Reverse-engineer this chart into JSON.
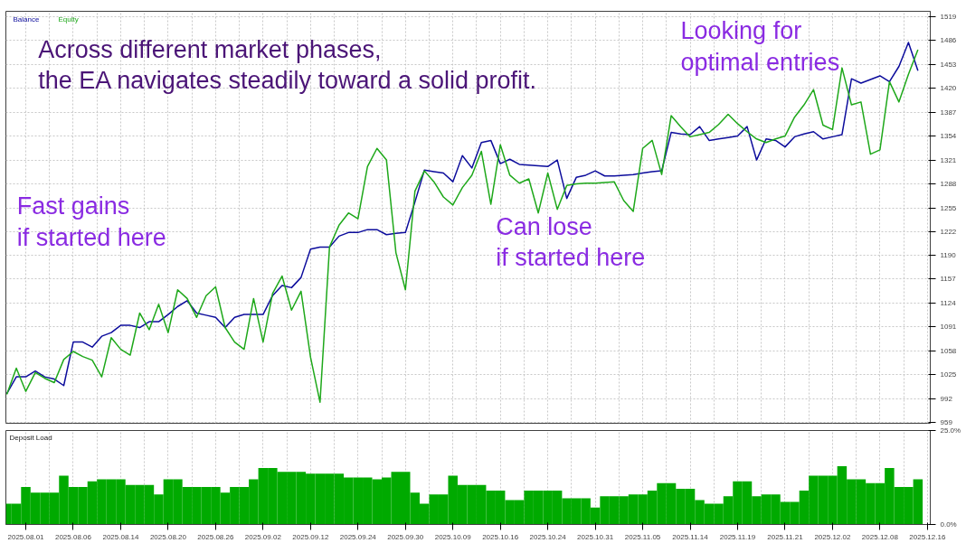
{
  "chart_data": [
    {
      "type": "line",
      "legend": "top left",
      "grid": true,
      "tick_labels": "y",
      "ylim": [
        958,
        1526
      ],
      "categories": [
        null,
        null,
        "2025.08.01",
        null,
        null,
        null,
        null,
        "2025.08.06",
        null,
        null,
        null,
        null,
        "2025.08.14",
        null,
        null,
        null,
        null,
        "2025.08.20",
        null,
        null,
        null,
        null,
        "2025.08.26",
        null,
        null,
        null,
        null,
        "2025.09.02",
        null,
        null,
        null,
        null,
        "2025.09.12",
        null,
        null,
        null,
        null,
        "2025.09.24",
        null,
        null,
        null,
        null,
        "2025.09.30",
        null,
        null,
        null,
        null,
        "2025.10.09",
        null,
        null,
        null,
        null,
        "2025.10.16",
        null,
        null,
        null,
        null,
        "2025.10.24",
        null,
        null,
        null,
        null,
        "2025.10.31",
        null,
        null,
        null,
        null,
        "2025.11.05",
        null,
        null,
        null,
        null,
        "2025.11.14",
        null,
        null,
        null,
        null,
        "2025.11.19",
        null,
        null,
        null,
        null,
        "2025.11.21",
        null,
        null,
        null,
        null,
        "2025.12.02",
        null,
        null,
        null,
        null,
        "2025.12.08",
        null,
        null,
        null,
        null,
        "2025.12.16"
      ],
      "yticks": [
        959,
        992,
        1025,
        1058,
        1091,
        1124,
        1157,
        1190,
        1222,
        1255,
        1288,
        1321,
        1354,
        1387,
        1420,
        1453,
        1486,
        1519
      ],
      "annotations": [
        "Across different market phases,\nthe EA navigates steadily toward a solid profit.",
        "Fast gains\nif started here",
        "Can lose\nif started here",
        "Looking for\noptimal entries"
      ],
      "series": [
        {
          "name": "Balance",
          "color": "#0c0c9c",
          "values": [
            999,
            1022,
            1022,
            1030,
            1022,
            1019,
            1010,
            1070,
            1070,
            1063,
            1078,
            1083,
            1093,
            1093,
            1090,
            1098,
            1098,
            1108,
            1119,
            1127,
            1110,
            1107,
            1104,
            1090,
            1104,
            1108,
            1108,
            1108,
            1134,
            1148,
            1145,
            1159,
            1198,
            1201,
            1201,
            1216,
            1221,
            1221,
            1225,
            1225,
            1218,
            1220,
            1221,
            1263,
            1307,
            1305,
            1303,
            1291,
            1327,
            1310,
            1345,
            1348,
            1316,
            1322,
            1315,
            1314,
            1313,
            1312,
            1321,
            1268,
            1297,
            1300,
            1306,
            1299,
            1299,
            1300,
            1301,
            1303,
            1305,
            1306,
            1359,
            1357,
            1356,
            1367,
            1348,
            1350,
            1352,
            1354,
            1367,
            1321,
            1350,
            1348,
            1339,
            1353,
            1357,
            1360,
            1350,
            1353,
            1356,
            1433,
            1427,
            1432,
            1437,
            1429,
            1450,
            1483,
            1444,
            null
          ]
        },
        {
          "name": "Equity",
          "color": "#1ea81a",
          "values": [
            998,
            1034,
            1002,
            1028,
            1020,
            1014,
            1046,
            1057,
            1050,
            1045,
            1022,
            1076,
            1060,
            1052,
            1110,
            1087,
            1122,
            1083,
            1142,
            1130,
            1104,
            1134,
            1146,
            1090,
            1070,
            1060,
            1130,
            1070,
            1137,
            1161,
            1114,
            1140,
            1049,
            987,
            1201,
            1231,
            1248,
            1240,
            1312,
            1337,
            1321,
            1193,
            1142,
            1278,
            1306,
            1291,
            1270,
            1259,
            1283,
            1300,
            1333,
            1260,
            1342,
            1300,
            1289,
            1295,
            1248,
            1303,
            1253,
            1286,
            1288,
            1289,
            1289,
            1290,
            1291,
            1265,
            1250,
            1337,
            1348,
            1301,
            1382,
            1367,
            1353,
            1356,
            1359,
            1370,
            1384,
            1371,
            1360,
            1350,
            1345,
            1350,
            1354,
            1380,
            1397,
            1418,
            1369,
            1363,
            1448,
            1397,
            1401,
            1329,
            1335,
            1429,
            1401,
            1439,
            1473,
            null
          ]
        }
      ]
    },
    {
      "type": "bar",
      "title": "Deposit Load",
      "color": "#00aa00",
      "grid": "x",
      "ylim": [
        0,
        25
      ],
      "yticks": [
        {
          "value": 0,
          "label": "0.0%"
        },
        {
          "value": 25,
          "label": "25.0%"
        }
      ],
      "categories": [
        null,
        null,
        "2025.08.01",
        null,
        null,
        null,
        null,
        "2025.08.06",
        null,
        null,
        null,
        null,
        "2025.08.14",
        null,
        null,
        null,
        null,
        "2025.08.20",
        null,
        null,
        null,
        null,
        "2025.08.26",
        null,
        null,
        null,
        null,
        "2025.09.02",
        null,
        null,
        null,
        null,
        "2025.09.12",
        null,
        null,
        null,
        null,
        "2025.09.24",
        null,
        null,
        null,
        null,
        "2025.09.30",
        null,
        null,
        null,
        null,
        "2025.10.09",
        null,
        null,
        null,
        null,
        "2025.10.16",
        null,
        null,
        null,
        null,
        "2025.10.24",
        null,
        null,
        null,
        null,
        "2025.10.31",
        null,
        null,
        null,
        null,
        "2025.11.05",
        null,
        null,
        null,
        null,
        "2025.11.14",
        null,
        null,
        null,
        null,
        "2025.11.19",
        null,
        null,
        null,
        null,
        "2025.11.21",
        null,
        null,
        null,
        null,
        "2025.12.02",
        null,
        null,
        null,
        null,
        "2025.12.08",
        null,
        null,
        null,
        null,
        "2025.12.16"
      ],
      "values": [
        5.5,
        5.5,
        10,
        8.5,
        8.5,
        8.5,
        13,
        10,
        10,
        11.5,
        12,
        12,
        12,
        10.5,
        10.5,
        10.5,
        8,
        12,
        12,
        10,
        10,
        10,
        10,
        8.5,
        10,
        10,
        12,
        15,
        15,
        14,
        14,
        14,
        13.5,
        13.5,
        13.5,
        13.5,
        12.5,
        12.5,
        12.5,
        12,
        12.5,
        14,
        14,
        8.5,
        5.5,
        8,
        8,
        13,
        10.5,
        10.5,
        10.5,
        9,
        9,
        6.5,
        6.5,
        9,
        9,
        9,
        9,
        7,
        7,
        7,
        4.5,
        7.5,
        7.5,
        7.5,
        8,
        8,
        9,
        11,
        11,
        9.5,
        9.5,
        6.5,
        5.5,
        5.5,
        7.5,
        11.5,
        11.5,
        7.5,
        8,
        8,
        6,
        6,
        9,
        13,
        13,
        13,
        15.5,
        12,
        12,
        11,
        11,
        15,
        10,
        10,
        12,
        null
      ]
    }
  ]
}
